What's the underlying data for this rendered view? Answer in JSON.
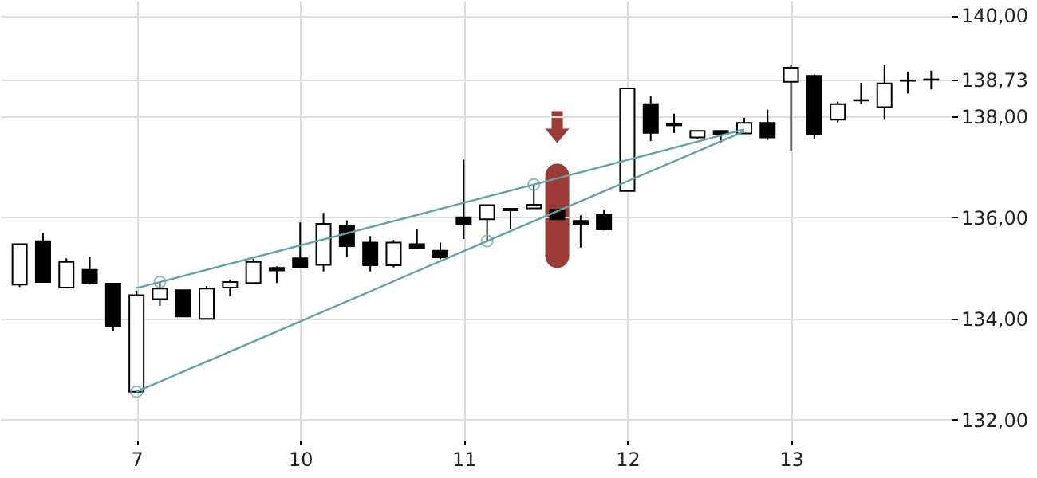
{
  "chart_data": {
    "type": "candlestick",
    "categories": [
      null,
      null,
      null,
      null,
      null,
      "7",
      null,
      null,
      null,
      null,
      null,
      null,
      "10",
      null,
      null,
      null,
      null,
      null,
      null,
      "11",
      null,
      null,
      null,
      null,
      null,
      null,
      "12",
      null,
      null,
      null,
      null,
      null,
      null,
      "13",
      null,
      null,
      null,
      null,
      null,
      null
    ],
    "ohlc": [
      [
        134.67,
        135.47,
        134.62,
        135.47
      ],
      [
        135.53,
        135.69,
        134.72,
        134.72
      ],
      [
        134.61,
        135.19,
        134.61,
        135.12
      ],
      [
        134.96,
        135.22,
        134.67,
        134.7
      ],
      [
        134.69,
        134.69,
        133.76,
        133.85
      ],
      [
        132.55,
        134.55,
        132.55,
        134.46
      ],
      [
        134.38,
        134.72,
        134.25,
        134.59
      ],
      [
        134.56,
        134.56,
        134.04,
        134.04
      ],
      [
        133.99,
        134.64,
        133.99,
        134.59
      ],
      [
        134.61,
        134.77,
        134.44,
        134.72
      ],
      [
        134.7,
        135.18,
        134.7,
        135.12
      ],
      [
        135.0,
        135.03,
        134.7,
        134.95
      ],
      [
        135.19,
        135.9,
        135.01,
        135.01
      ],
      [
        135.06,
        136.09,
        134.93,
        135.87
      ],
      [
        135.84,
        135.94,
        135.21,
        135.43
      ],
      [
        135.5,
        135.63,
        134.93,
        135.05
      ],
      [
        135.05,
        135.55,
        135.01,
        135.5
      ],
      [
        135.47,
        135.76,
        135.4,
        135.4
      ],
      [
        135.34,
        135.5,
        135.17,
        135.21
      ],
      [
        136.0,
        137.14,
        135.57,
        135.87
      ],
      [
        135.96,
        136.24,
        135.53,
        136.24
      ],
      [
        136.17,
        136.17,
        135.76,
        136.14
      ],
      [
        136.18,
        136.65,
        136.18,
        136.25
      ],
      [
        136.15,
        136.15,
        135.96,
        135.96
      ],
      [
        135.93,
        136.04,
        135.4,
        135.87
      ],
      [
        136.05,
        136.15,
        135.74,
        135.76
      ],
      [
        136.52,
        138.55,
        136.52,
        138.55
      ],
      [
        138.24,
        138.4,
        137.51,
        137.67
      ],
      [
        137.85,
        138.05,
        137.67,
        137.82
      ],
      [
        137.58,
        137.71,
        137.55,
        137.71
      ],
      [
        137.71,
        137.71,
        137.48,
        137.64
      ],
      [
        137.66,
        137.97,
        137.66,
        137.87
      ],
      [
        137.87,
        138.13,
        137.53,
        137.58
      ],
      [
        138.68,
        139.02,
        137.32,
        138.96
      ],
      [
        138.8,
        138.83,
        137.56,
        137.64
      ],
      [
        137.93,
        138.29,
        137.88,
        138.24
      ],
      [
        138.32,
        138.66,
        138.24,
        138.31
      ],
      [
        138.18,
        139.02,
        137.93,
        138.65
      ],
      [
        138.71,
        138.88,
        138.45,
        138.7
      ],
      [
        138.72,
        138.9,
        138.53,
        138.73
      ]
    ],
    "series": [
      {
        "type": "line",
        "color": "#5fa3a8",
        "values": [
          null,
          null,
          null,
          null,
          null,
          134.6,
          134.72,
          null,
          null,
          null,
          null,
          null,
          null,
          null,
          null,
          null,
          null,
          null,
          null,
          null,
          null,
          null,
          136.65,
          null,
          null,
          null,
          null,
          null,
          null,
          null,
          null,
          137.74,
          null,
          null,
          null,
          null,
          null,
          null,
          null,
          null
        ]
      },
      {
        "type": "line",
        "color": "#5fa3a8",
        "values": [
          null,
          null,
          null,
          null,
          null,
          132.55,
          null,
          null,
          null,
          null,
          null,
          null,
          null,
          null,
          null,
          null,
          null,
          null,
          null,
          null,
          135.53,
          null,
          null,
          null,
          null,
          null,
          null,
          null,
          null,
          null,
          null,
          137.7,
          null,
          null,
          null,
          null,
          null,
          null,
          null,
          null
        ]
      },
      {
        "type": "scatter",
        "marker": "circle",
        "color": "#5fa3a8",
        "values": [
          null,
          null,
          null,
          null,
          null,
          132.55,
          134.72,
          null,
          null,
          null,
          null,
          null,
          null,
          null,
          null,
          null,
          null,
          null,
          null,
          null,
          135.53,
          null,
          136.65,
          null,
          null,
          null,
          null,
          null,
          null,
          null,
          null,
          null,
          null,
          null,
          null,
          null,
          null,
          null,
          null,
          null
        ]
      }
    ],
    "ylim": [
      131.6,
      140.3
    ],
    "yticks": [
      {
        "value": 132,
        "label": "132,00"
      },
      {
        "value": 134,
        "label": "134,00"
      },
      {
        "value": 136,
        "label": "136,00"
      },
      {
        "value": 138,
        "label": "138,00"
      },
      {
        "value": 138.73,
        "label": "138,73"
      },
      {
        "value": 140,
        "label": "140,00"
      }
    ],
    "grid": true
  }
}
